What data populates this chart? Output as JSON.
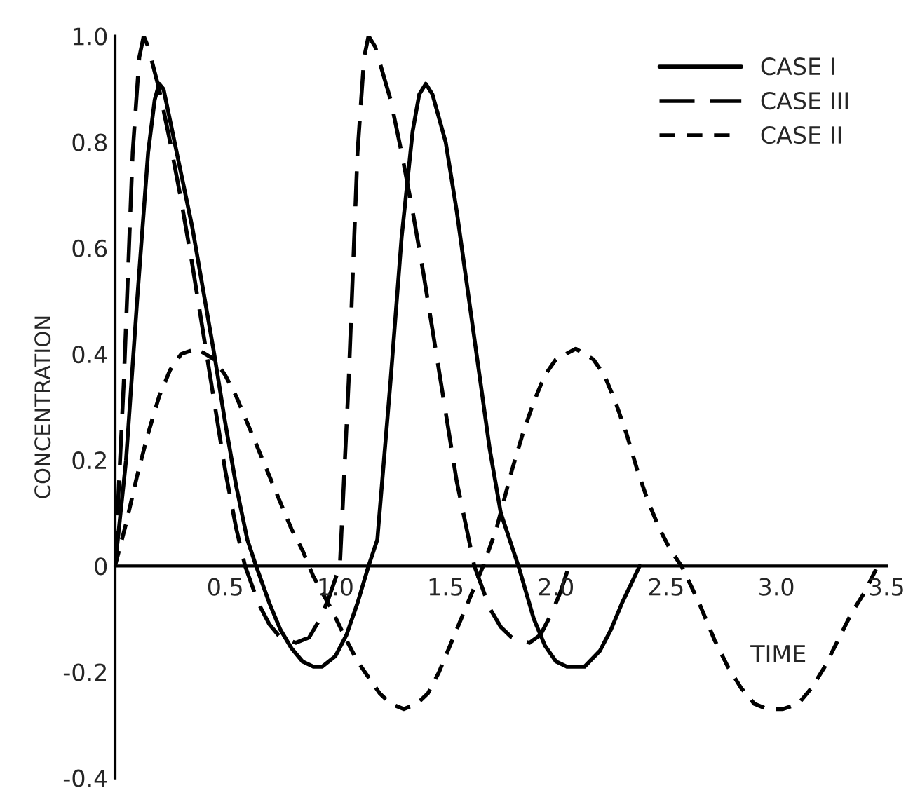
{
  "chart_data": {
    "type": "line",
    "xlabel": "TIME",
    "ylabel": "CONCENTRATION",
    "xlim": [
      0,
      3.5
    ],
    "ylim": [
      -0.4,
      1.0
    ],
    "xticks": [
      {
        "value": 0.5,
        "label": "0.5"
      },
      {
        "value": 1.0,
        "label": "1.0"
      },
      {
        "value": 1.5,
        "label": "1.5"
      },
      {
        "value": 2.0,
        "label": "2.0"
      },
      {
        "value": 2.5,
        "label": "2.5"
      },
      {
        "value": 3.0,
        "label": "3.0"
      },
      {
        "value": 3.5,
        "label": "3.5"
      }
    ],
    "yticks": [
      {
        "value": -0.4,
        "label": "-0.4"
      },
      {
        "value": -0.2,
        "label": "-0.2"
      },
      0,
      {
        "value": 0.2,
        "label": "0.2"
      },
      {
        "value": 0.4,
        "label": "0.4"
      },
      {
        "value": 0.6,
        "label": "0.6"
      },
      {
        "value": 0.8,
        "label": "0.8"
      },
      {
        "value": 1.0,
        "label": "1.0"
      }
    ],
    "grid": false,
    "legend": "top right",
    "marker": "none",
    "series": [
      {
        "name": "CASE I",
        "color": "#000000",
        "line_style": "solid",
        "x": [
          0,
          0.05,
          0.1,
          0.15,
          0.18,
          0.2,
          0.22,
          0.25,
          0.3,
          0.35,
          0.4,
          0.45,
          0.5,
          0.55,
          0.6,
          0.64,
          0.7,
          0.75,
          0.8,
          0.85,
          0.9,
          0.94,
          1.0,
          1.05,
          1.1,
          1.15,
          1.19,
          1.25,
          1.3,
          1.35,
          1.38,
          1.41,
          1.44,
          1.5,
          1.55,
          1.6,
          1.65,
          1.7,
          1.75,
          1.83,
          1.9,
          1.95,
          2.0,
          2.05,
          2.13,
          2.2,
          2.25,
          2.3,
          2.38
        ],
        "values": [
          0,
          0.2,
          0.5,
          0.78,
          0.88,
          0.91,
          0.9,
          0.84,
          0.74,
          0.64,
          0.52,
          0.4,
          0.27,
          0.15,
          0.05,
          0,
          -0.07,
          -0.12,
          -0.155,
          -0.18,
          -0.19,
          -0.19,
          -0.17,
          -0.13,
          -0.07,
          0.0,
          0.05,
          0.35,
          0.62,
          0.82,
          0.89,
          0.91,
          0.89,
          0.8,
          0.67,
          0.52,
          0.37,
          0.22,
          0.1,
          0,
          -0.1,
          -0.15,
          -0.18,
          -0.19,
          -0.19,
          -0.16,
          -0.12,
          -0.07,
          0
        ]
      },
      {
        "name": "CASE III",
        "color": "#000000",
        "line_style": "dashed",
        "x": [
          0,
          0.04,
          0.08,
          0.11,
          0.13,
          0.15,
          0.2,
          0.25,
          0.3,
          0.35,
          0.4,
          0.45,
          0.5,
          0.55,
          0.59,
          0.65,
          0.7,
          0.75,
          0.82,
          0.88,
          0.93,
          0.97,
          1.02,
          1.06,
          1.1,
          1.13,
          1.15,
          1.18,
          1.25,
          1.3,
          1.35,
          1.4,
          1.45,
          1.5,
          1.55,
          1.63,
          1.7,
          1.75,
          1.8,
          1.88,
          1.93,
          1.98,
          2.02,
          2.06
        ],
        "values": [
          0,
          0.35,
          0.78,
          0.96,
          1.0,
          0.98,
          0.9,
          0.8,
          0.69,
          0.57,
          0.44,
          0.31,
          0.18,
          0.07,
          0,
          -0.07,
          -0.11,
          -0.135,
          -0.145,
          -0.135,
          -0.1,
          -0.06,
          0,
          0.35,
          0.78,
          0.96,
          1.0,
          0.98,
          0.88,
          0.78,
          0.67,
          0.55,
          0.42,
          0.29,
          0.16,
          0,
          -0.08,
          -0.115,
          -0.135,
          -0.145,
          -0.13,
          -0.09,
          -0.05,
          0
        ]
      },
      {
        "name": "CASE II",
        "color": "#000000",
        "line_style": "dotted",
        "x": [
          0,
          0.05,
          0.1,
          0.15,
          0.2,
          0.25,
          0.3,
          0.37,
          0.45,
          0.5,
          0.55,
          0.6,
          0.65,
          0.7,
          0.75,
          0.8,
          0.85,
          0.9,
          0.98,
          1.05,
          1.1,
          1.15,
          1.2,
          1.25,
          1.31,
          1.37,
          1.42,
          1.47,
          1.52,
          1.57,
          1.62,
          1.67,
          1.73,
          1.8,
          1.85,
          1.9,
          1.95,
          2.0,
          2.09,
          2.17,
          2.22,
          2.27,
          2.32,
          2.37,
          2.42,
          2.47,
          2.52,
          2.57,
          2.65,
          2.72,
          2.78,
          2.84,
          2.9,
          2.96,
          3.03,
          3.1,
          3.16,
          3.22,
          3.28,
          3.34,
          3.4,
          3.46
        ],
        "values": [
          0,
          0.08,
          0.17,
          0.25,
          0.32,
          0.37,
          0.4,
          0.41,
          0.39,
          0.36,
          0.32,
          0.27,
          0.22,
          0.17,
          0.12,
          0.07,
          0.03,
          -0.02,
          -0.08,
          -0.14,
          -0.18,
          -0.21,
          -0.24,
          -0.26,
          -0.27,
          -0.26,
          -0.24,
          -0.2,
          -0.15,
          -0.1,
          -0.05,
          0.0,
          0.07,
          0.18,
          0.25,
          0.31,
          0.36,
          0.39,
          0.41,
          0.39,
          0.36,
          0.31,
          0.25,
          0.18,
          0.12,
          0.07,
          0.03,
          0,
          -0.07,
          -0.14,
          -0.19,
          -0.23,
          -0.26,
          -0.27,
          -0.27,
          -0.26,
          -0.23,
          -0.19,
          -0.14,
          -0.09,
          -0.05,
          0
        ]
      }
    ]
  }
}
